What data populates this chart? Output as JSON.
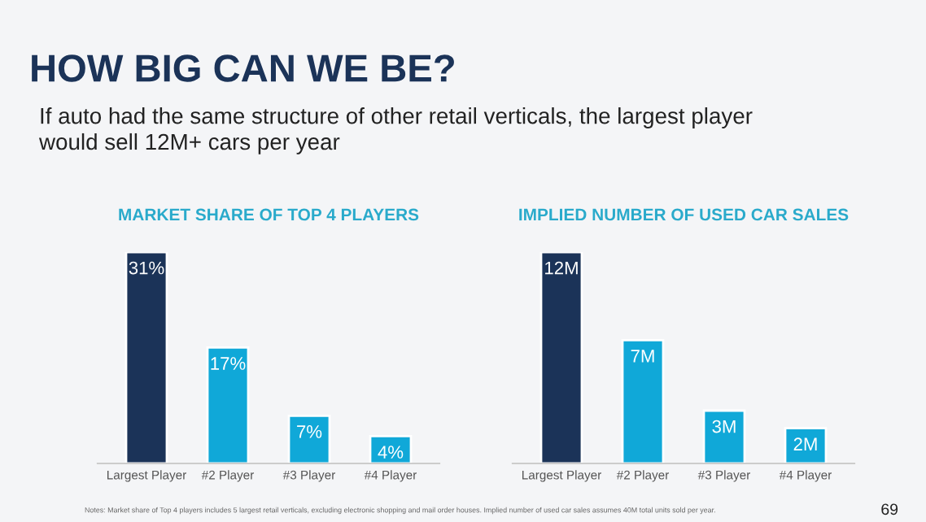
{
  "chart_data": [
    {
      "type": "bar",
      "title": "MARKET SHARE OF TOP 4 PLAYERS",
      "categories": [
        "Largest Player",
        "#2 Player",
        "#3 Player",
        "#4 Player"
      ],
      "values": [
        31,
        17,
        7,
        4
      ],
      "colors": [
        "#1b3358",
        "#10a8d8",
        "#10a8d8",
        "#10a8d8"
      ],
      "value_labels": [
        "31%",
        "17%",
        "7%",
        "4%"
      ],
      "annotations": [
        "HOW BIG CAN WE BE?",
        "If auto had the same structure of other retail verticals, the largest player would sell 12M+ cars per year",
        "Notes: Market share of Top 4 players includes 5 largest retail verticals, excluding electronic shopping and mail order houses. Implied number of used car sales assumes 40M total units sold per year.",
        "69"
      ]
    },
    {
      "type": "bar",
      "title": "IMPLIED NUMBER OF USED CAR SALES",
      "categories": [
        "Largest Player",
        "#2 Player",
        "#3 Player",
        "#4 Player"
      ],
      "values": [
        12,
        7,
        3,
        2
      ],
      "colors": [
        "#1b3358",
        "#10a8d8",
        "#10a8d8",
        "#10a8d8"
      ],
      "value_labels": [
        "12M",
        "7M",
        "3M",
        "2M"
      ]
    }
  ]
}
